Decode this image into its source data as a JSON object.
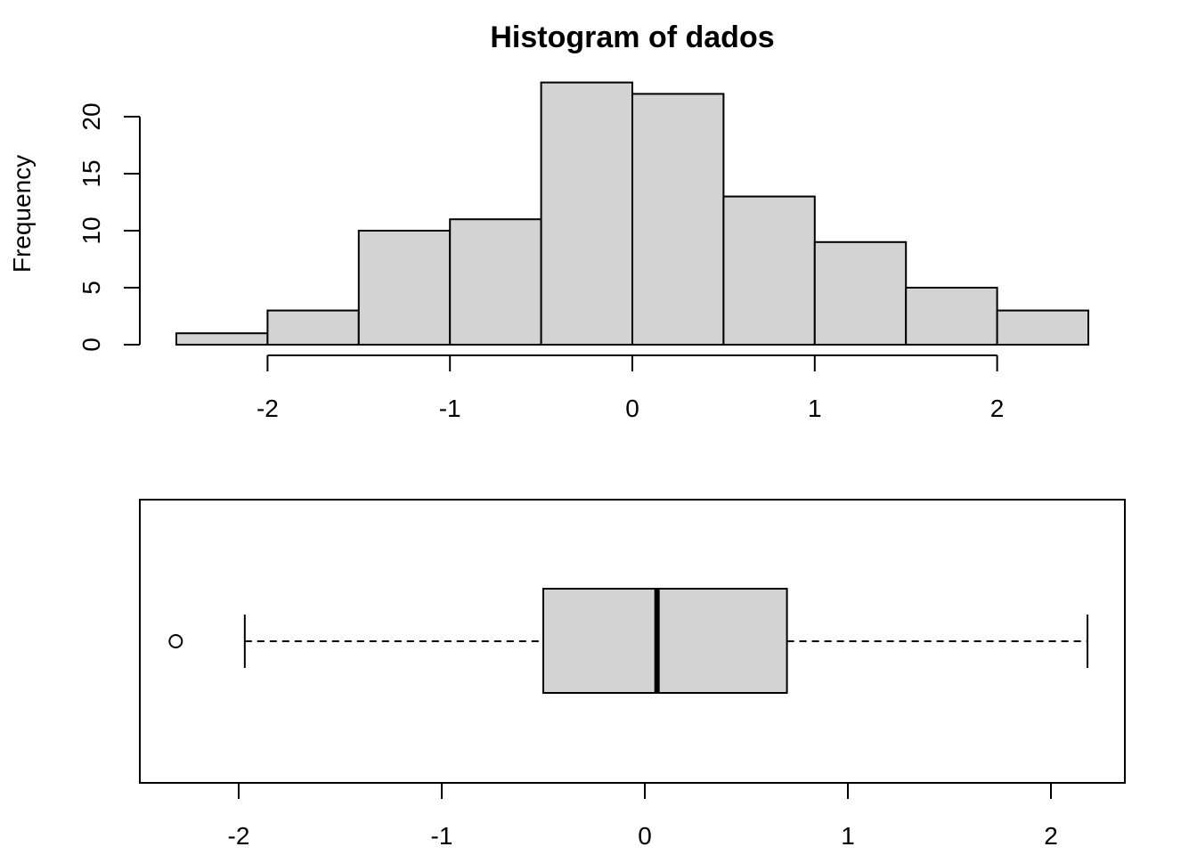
{
  "chart_data": [
    {
      "type": "histogram",
      "title": "Histogram of dados",
      "xlabel": "",
      "ylabel": "Frequency",
      "bins": [
        {
          "from": -2.5,
          "to": -2.0,
          "count": 1
        },
        {
          "from": -2.0,
          "to": -1.5,
          "count": 3
        },
        {
          "from": -1.5,
          "to": -1.0,
          "count": 10
        },
        {
          "from": -1.0,
          "to": -0.5,
          "count": 11
        },
        {
          "from": -0.5,
          "to": 0.0,
          "count": 23
        },
        {
          "from": 0.0,
          "to": 0.5,
          "count": 22
        },
        {
          "from": 0.5,
          "to": 1.0,
          "count": 13
        },
        {
          "from": 1.0,
          "to": 1.5,
          "count": 9
        },
        {
          "from": 1.5,
          "to": 2.0,
          "count": 5
        },
        {
          "from": 2.0,
          "to": 2.5,
          "count": 3
        }
      ],
      "xticks": [
        -2,
        -1,
        0,
        1,
        2
      ],
      "xtick_labels": [
        "-2",
        "-1",
        "0",
        "1",
        "2"
      ],
      "yticks": [
        0,
        5,
        10,
        15,
        20
      ],
      "ytick_labels": [
        "0",
        "5",
        "10",
        "15",
        "20"
      ],
      "xlim": [
        -2.5,
        2.5
      ],
      "ylim": [
        0,
        23
      ],
      "colors": {
        "bar_fill": "#d3d3d3",
        "bar_stroke": "#000000"
      }
    },
    {
      "type": "boxplot",
      "orientation": "horizontal",
      "box": {
        "q1": -0.5,
        "median": 0.06,
        "q3": 0.7
      },
      "whiskers": {
        "low": -1.97,
        "high": 2.18
      },
      "outliers": [
        -2.31
      ],
      "xticks": [
        -2,
        -1,
        0,
        1,
        2
      ],
      "xtick_labels": [
        "-2",
        "-1",
        "0",
        "1",
        "2"
      ],
      "xlim": [
        -2.5,
        2.35
      ],
      "colors": {
        "box_fill": "#d3d3d3",
        "stroke": "#000000"
      }
    }
  ]
}
